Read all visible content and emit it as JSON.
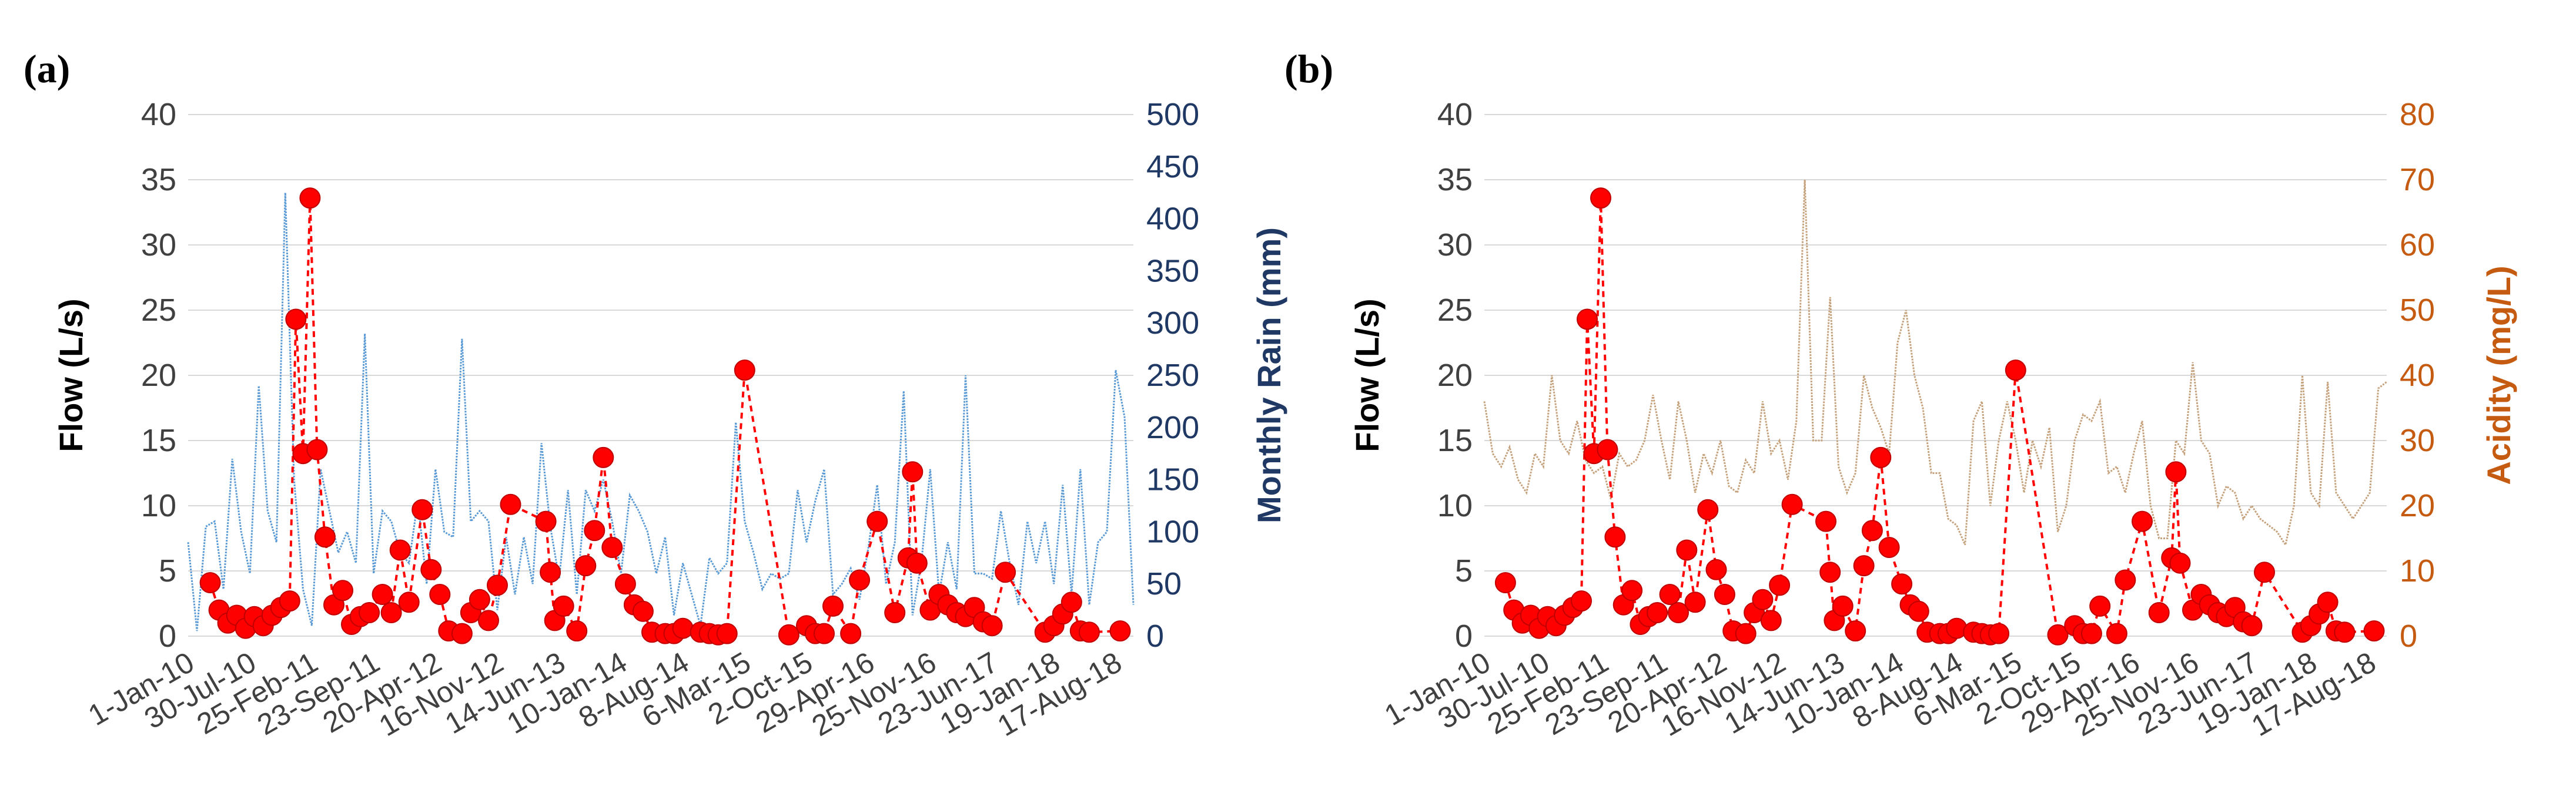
{
  "colors": {
    "flow": "#ff0000",
    "rain": "#5b9bd5",
    "rain_axis": "#1f3864",
    "acidity": "#c5a27c",
    "acidity_axis": "#c55a11",
    "grid": "#d9d9d9",
    "tick": "#404040"
  },
  "chart_data": [
    {
      "type": "line",
      "panel_label": "(a)",
      "ylabel": "Flow (L/s)",
      "ylim": [
        0,
        40
      ],
      "yticks": [
        "0",
        "5",
        "10",
        "15",
        "20",
        "25",
        "30",
        "35",
        "40"
      ],
      "y2label": "Monthly Rain (mm)",
      "y2lim": [
        0,
        500
      ],
      "y2ticks": [
        "0",
        "50",
        "100",
        "150",
        "200",
        "250",
        "300",
        "350",
        "400",
        "450",
        "500"
      ],
      "xlim": [
        0,
        107
      ],
      "xticks": [
        {
          "x": 0,
          "label": "1-Jan-10"
        },
        {
          "x": 7,
          "label": "30-Jul-10"
        },
        {
          "x": 14,
          "label": "25-Feb-11"
        },
        {
          "x": 21,
          "label": "23-Sep-11"
        },
        {
          "x": 28,
          "label": "20-Apr-12"
        },
        {
          "x": 35,
          "label": "16-Nov-12"
        },
        {
          "x": 42,
          "label": "14-Jun-13"
        },
        {
          "x": 49,
          "label": "10-Jan-14"
        },
        {
          "x": 56,
          "label": "8-Aug-14"
        },
        {
          "x": 63,
          "label": "6-Mar-15"
        },
        {
          "x": 70,
          "label": "2-Oct-15"
        },
        {
          "x": 77,
          "label": "29-Apr-16"
        },
        {
          "x": 84,
          "label": "25-Nov-16"
        },
        {
          "x": 91,
          "label": "23-Jun-17"
        },
        {
          "x": 98,
          "label": "19-Jan-18"
        },
        {
          "x": 105,
          "label": "17-Aug-18"
        }
      ],
      "series": [
        {
          "name": "Flow (L/s)",
          "axis": "left",
          "style": "dashed-markers",
          "x": [
            2.5,
            3.5,
            4.5,
            5.5,
            6.5,
            7.5,
            8.5,
            9.5,
            10.5,
            11.5,
            12.2,
            13,
            13.8,
            14.6,
            15.5,
            16.5,
            17.5,
            18.5,
            19.5,
            20.5,
            22,
            23,
            24,
            25,
            26.5,
            27.5,
            28.5,
            29.5,
            31,
            32,
            33,
            34,
            35,
            36.5,
            40.5,
            41,
            41.5,
            42.5,
            44,
            45,
            46,
            47,
            48,
            49.5,
            50.5,
            51.5,
            52.5,
            54,
            55,
            56,
            58,
            59,
            60,
            61,
            63,
            68,
            70,
            71,
            72,
            73,
            75,
            76,
            78,
            80,
            81.5,
            82,
            82.5,
            84,
            85,
            86,
            87,
            88,
            89,
            90,
            91,
            92.5,
            97,
            98,
            99,
            100,
            101,
            102,
            105.5
          ],
          "y": [
            4.1,
            2.0,
            1.0,
            1.6,
            0.6,
            1.5,
            0.8,
            1.6,
            2.2,
            2.7,
            24.3,
            14.0,
            33.6,
            14.3,
            7.6,
            2.4,
            3.5,
            0.9,
            1.5,
            1.8,
            3.2,
            1.8,
            6.6,
            2.6,
            9.7,
            5.1,
            3.2,
            0.4,
            0.2,
            1.8,
            2.8,
            1.2,
            3.9,
            10.1,
            8.8,
            4.9,
            1.2,
            2.3,
            0.4,
            5.4,
            8.1,
            13.7,
            6.8,
            4.0,
            2.4,
            1.9,
            0.3,
            0.2,
            0.2,
            0.6,
            0.3,
            0.2,
            0.1,
            0.2,
            20.4,
            0.1,
            0.8,
            0.2,
            0.2,
            2.3,
            0.2,
            4.3,
            8.8,
            1.8,
            6.0,
            12.6,
            5.6,
            2.0,
            3.2,
            2.4,
            1.8,
            1.5,
            2.2,
            1.1,
            0.8,
            4.9,
            0.3,
            0.8,
            1.7,
            2.6,
            0.4,
            0.3,
            0.4
          ]
        },
        {
          "name": "Monthly Rain (mm)",
          "axis": "right",
          "style": "thin-line",
          "x": [
            0,
            1,
            2,
            3,
            4,
            5,
            6,
            7,
            8,
            9,
            10,
            11,
            12,
            13,
            14,
            15,
            16,
            17,
            18,
            19,
            20,
            21,
            22,
            23,
            24,
            25,
            26,
            27,
            28,
            29,
            30,
            31,
            32,
            33,
            34,
            35,
            36,
            37,
            38,
            39,
            40,
            41,
            42,
            43,
            44,
            45,
            46,
            47,
            48,
            49,
            50,
            51,
            52,
            53,
            54,
            55,
            56,
            57,
            58,
            59,
            60,
            61,
            62,
            63,
            64,
            65,
            66,
            67,
            68,
            69,
            70,
            71,
            72,
            73,
            74,
            75,
            76,
            77,
            78,
            79,
            80,
            81,
            82,
            83,
            84,
            85,
            86,
            87,
            88,
            89,
            90,
            91,
            92,
            93,
            94,
            95,
            96,
            97,
            98,
            99,
            100,
            101,
            102,
            103,
            104,
            105,
            106,
            107
          ],
          "y": [
            90,
            5,
            105,
            110,
            45,
            170,
            100,
            60,
            240,
            120,
            90,
            425,
            150,
            45,
            10,
            160,
            120,
            80,
            100,
            70,
            290,
            60,
            120,
            110,
            80,
            70,
            130,
            50,
            160,
            100,
            95,
            285,
            110,
            120,
            110,
            25,
            95,
            40,
            95,
            50,
            185,
            105,
            55,
            140,
            40,
            140,
            120,
            150,
            110,
            60,
            135,
            120,
            100,
            60,
            95,
            20,
            70,
            40,
            10,
            75,
            60,
            70,
            205,
            110,
            80,
            45,
            60,
            55,
            60,
            140,
            90,
            130,
            160,
            40,
            50,
            65,
            35,
            85,
            145,
            50,
            90,
            235,
            20,
            70,
            160,
            40,
            90,
            45,
            250,
            60,
            60,
            55,
            120,
            70,
            30,
            110,
            70,
            110,
            50,
            145,
            40,
            160,
            30,
            90,
            100,
            255,
            210,
            30
          ]
        }
      ]
    },
    {
      "type": "line",
      "panel_label": "(b)",
      "ylabel": "Flow (L/s)",
      "ylim": [
        0,
        40
      ],
      "yticks": [
        "0",
        "5",
        "10",
        "15",
        "20",
        "25",
        "30",
        "35",
        "40"
      ],
      "y2label": "Acidity (mg/L)",
      "y2lim": [
        0,
        80
      ],
      "y2ticks": [
        "0",
        "10",
        "20",
        "30",
        "40",
        "50",
        "60",
        "70",
        "80"
      ],
      "xlim": [
        0,
        107
      ],
      "xticks": [
        {
          "x": 0,
          "label": "1-Jan-10"
        },
        {
          "x": 7,
          "label": "30-Jul-10"
        },
        {
          "x": 14,
          "label": "25-Feb-11"
        },
        {
          "x": 21,
          "label": "23-Sep-11"
        },
        {
          "x": 28,
          "label": "20-Apr-12"
        },
        {
          "x": 35,
          "label": "16-Nov-12"
        },
        {
          "x": 42,
          "label": "14-Jun-13"
        },
        {
          "x": 49,
          "label": "10-Jan-14"
        },
        {
          "x": 56,
          "label": "8-Aug-14"
        },
        {
          "x": 63,
          "label": "6-Mar-15"
        },
        {
          "x": 70,
          "label": "2-Oct-15"
        },
        {
          "x": 77,
          "label": "29-Apr-16"
        },
        {
          "x": 84,
          "label": "25-Nov-16"
        },
        {
          "x": 91,
          "label": "23-Jun-17"
        },
        {
          "x": 98,
          "label": "19-Jan-18"
        },
        {
          "x": 105,
          "label": "17-Aug-18"
        }
      ],
      "series": [
        {
          "name": "Flow (L/s)",
          "axis": "left",
          "style": "dashed-markers",
          "x": [
            2.5,
            3.5,
            4.5,
            5.5,
            6.5,
            7.5,
            8.5,
            9.5,
            10.5,
            11.5,
            12.2,
            13,
            13.8,
            14.6,
            15.5,
            16.5,
            17.5,
            18.5,
            19.5,
            20.5,
            22,
            23,
            24,
            25,
            26.5,
            27.5,
            28.5,
            29.5,
            31,
            32,
            33,
            34,
            35,
            36.5,
            40.5,
            41,
            41.5,
            42.5,
            44,
            45,
            46,
            47,
            48,
            49.5,
            50.5,
            51.5,
            52.5,
            54,
            55,
            56,
            58,
            59,
            60,
            61,
            63,
            68,
            70,
            71,
            72,
            73,
            75,
            76,
            78,
            80,
            81.5,
            82,
            82.5,
            84,
            85,
            86,
            87,
            88,
            89,
            90,
            91,
            92.5,
            97,
            98,
            99,
            100,
            101,
            102,
            105.5
          ],
          "y": [
            4.1,
            2.0,
            1.0,
            1.6,
            0.6,
            1.5,
            0.8,
            1.6,
            2.2,
            2.7,
            24.3,
            14.0,
            33.6,
            14.3,
            7.6,
            2.4,
            3.5,
            0.9,
            1.5,
            1.8,
            3.2,
            1.8,
            6.6,
            2.6,
            9.7,
            5.1,
            3.2,
            0.4,
            0.2,
            1.8,
            2.8,
            1.2,
            3.9,
            10.1,
            8.8,
            4.9,
            1.2,
            2.3,
            0.4,
            5.4,
            8.1,
            13.7,
            6.8,
            4.0,
            2.4,
            1.9,
            0.3,
            0.2,
            0.2,
            0.6,
            0.3,
            0.2,
            0.1,
            0.2,
            20.4,
            0.1,
            0.8,
            0.2,
            0.2,
            2.3,
            0.2,
            4.3,
            8.8,
            1.8,
            6.0,
            12.6,
            5.6,
            2.0,
            3.2,
            2.4,
            1.8,
            1.5,
            2.2,
            1.1,
            0.8,
            4.9,
            0.3,
            0.8,
            1.7,
            2.6,
            0.4,
            0.3,
            0.4
          ]
        },
        {
          "name": "Acidity (mg/L)",
          "axis": "right",
          "style": "thin-line",
          "x": [
            0,
            1,
            2,
            3,
            4,
            5,
            6,
            7,
            8,
            9,
            10,
            11,
            12,
            13,
            14,
            15,
            16,
            17,
            18,
            19,
            20,
            21,
            22,
            23,
            24,
            25,
            26,
            27,
            28,
            29,
            30,
            31,
            32,
            33,
            34,
            35,
            36,
            37,
            38,
            39,
            40,
            41,
            42,
            43,
            44,
            45,
            46,
            47,
            48,
            49,
            50,
            51,
            52,
            53,
            54,
            55,
            56,
            57,
            58,
            59,
            60,
            61,
            62,
            63,
            64,
            65,
            66,
            67,
            68,
            69,
            70,
            71,
            72,
            73,
            74,
            75,
            76,
            77,
            78,
            79,
            80,
            81,
            82,
            83,
            84,
            85,
            86,
            87,
            88,
            89,
            90,
            91,
            92,
            93,
            94,
            95,
            96,
            97,
            98,
            99,
            100,
            101,
            102,
            103,
            104,
            105,
            106,
            107
          ],
          "y": [
            36,
            28,
            26,
            29,
            24,
            22,
            28,
            26,
            40,
            30,
            28,
            33,
            27,
            25,
            26,
            21,
            28,
            26,
            27,
            30,
            37,
            30,
            24,
            36,
            30,
            22,
            28,
            25,
            30,
            23,
            22,
            27,
            25,
            36,
            28,
            30,
            24,
            33,
            70,
            30,
            30,
            52,
            26,
            22,
            25,
            40,
            35,
            32,
            28,
            45,
            50,
            40,
            35,
            25,
            25,
            18,
            17,
            14,
            33,
            36,
            20,
            30,
            36,
            30,
            22,
            30,
            26,
            32,
            16,
            20,
            30,
            34,
            33,
            36,
            25,
            26,
            22,
            28,
            33,
            20,
            15,
            15,
            30,
            28,
            42,
            30,
            28,
            20,
            23,
            22,
            18,
            20,
            18,
            17,
            16,
            14,
            20,
            40,
            22,
            20,
            39,
            22,
            20,
            18,
            20,
            22,
            38,
            39
          ]
        }
      ]
    }
  ]
}
